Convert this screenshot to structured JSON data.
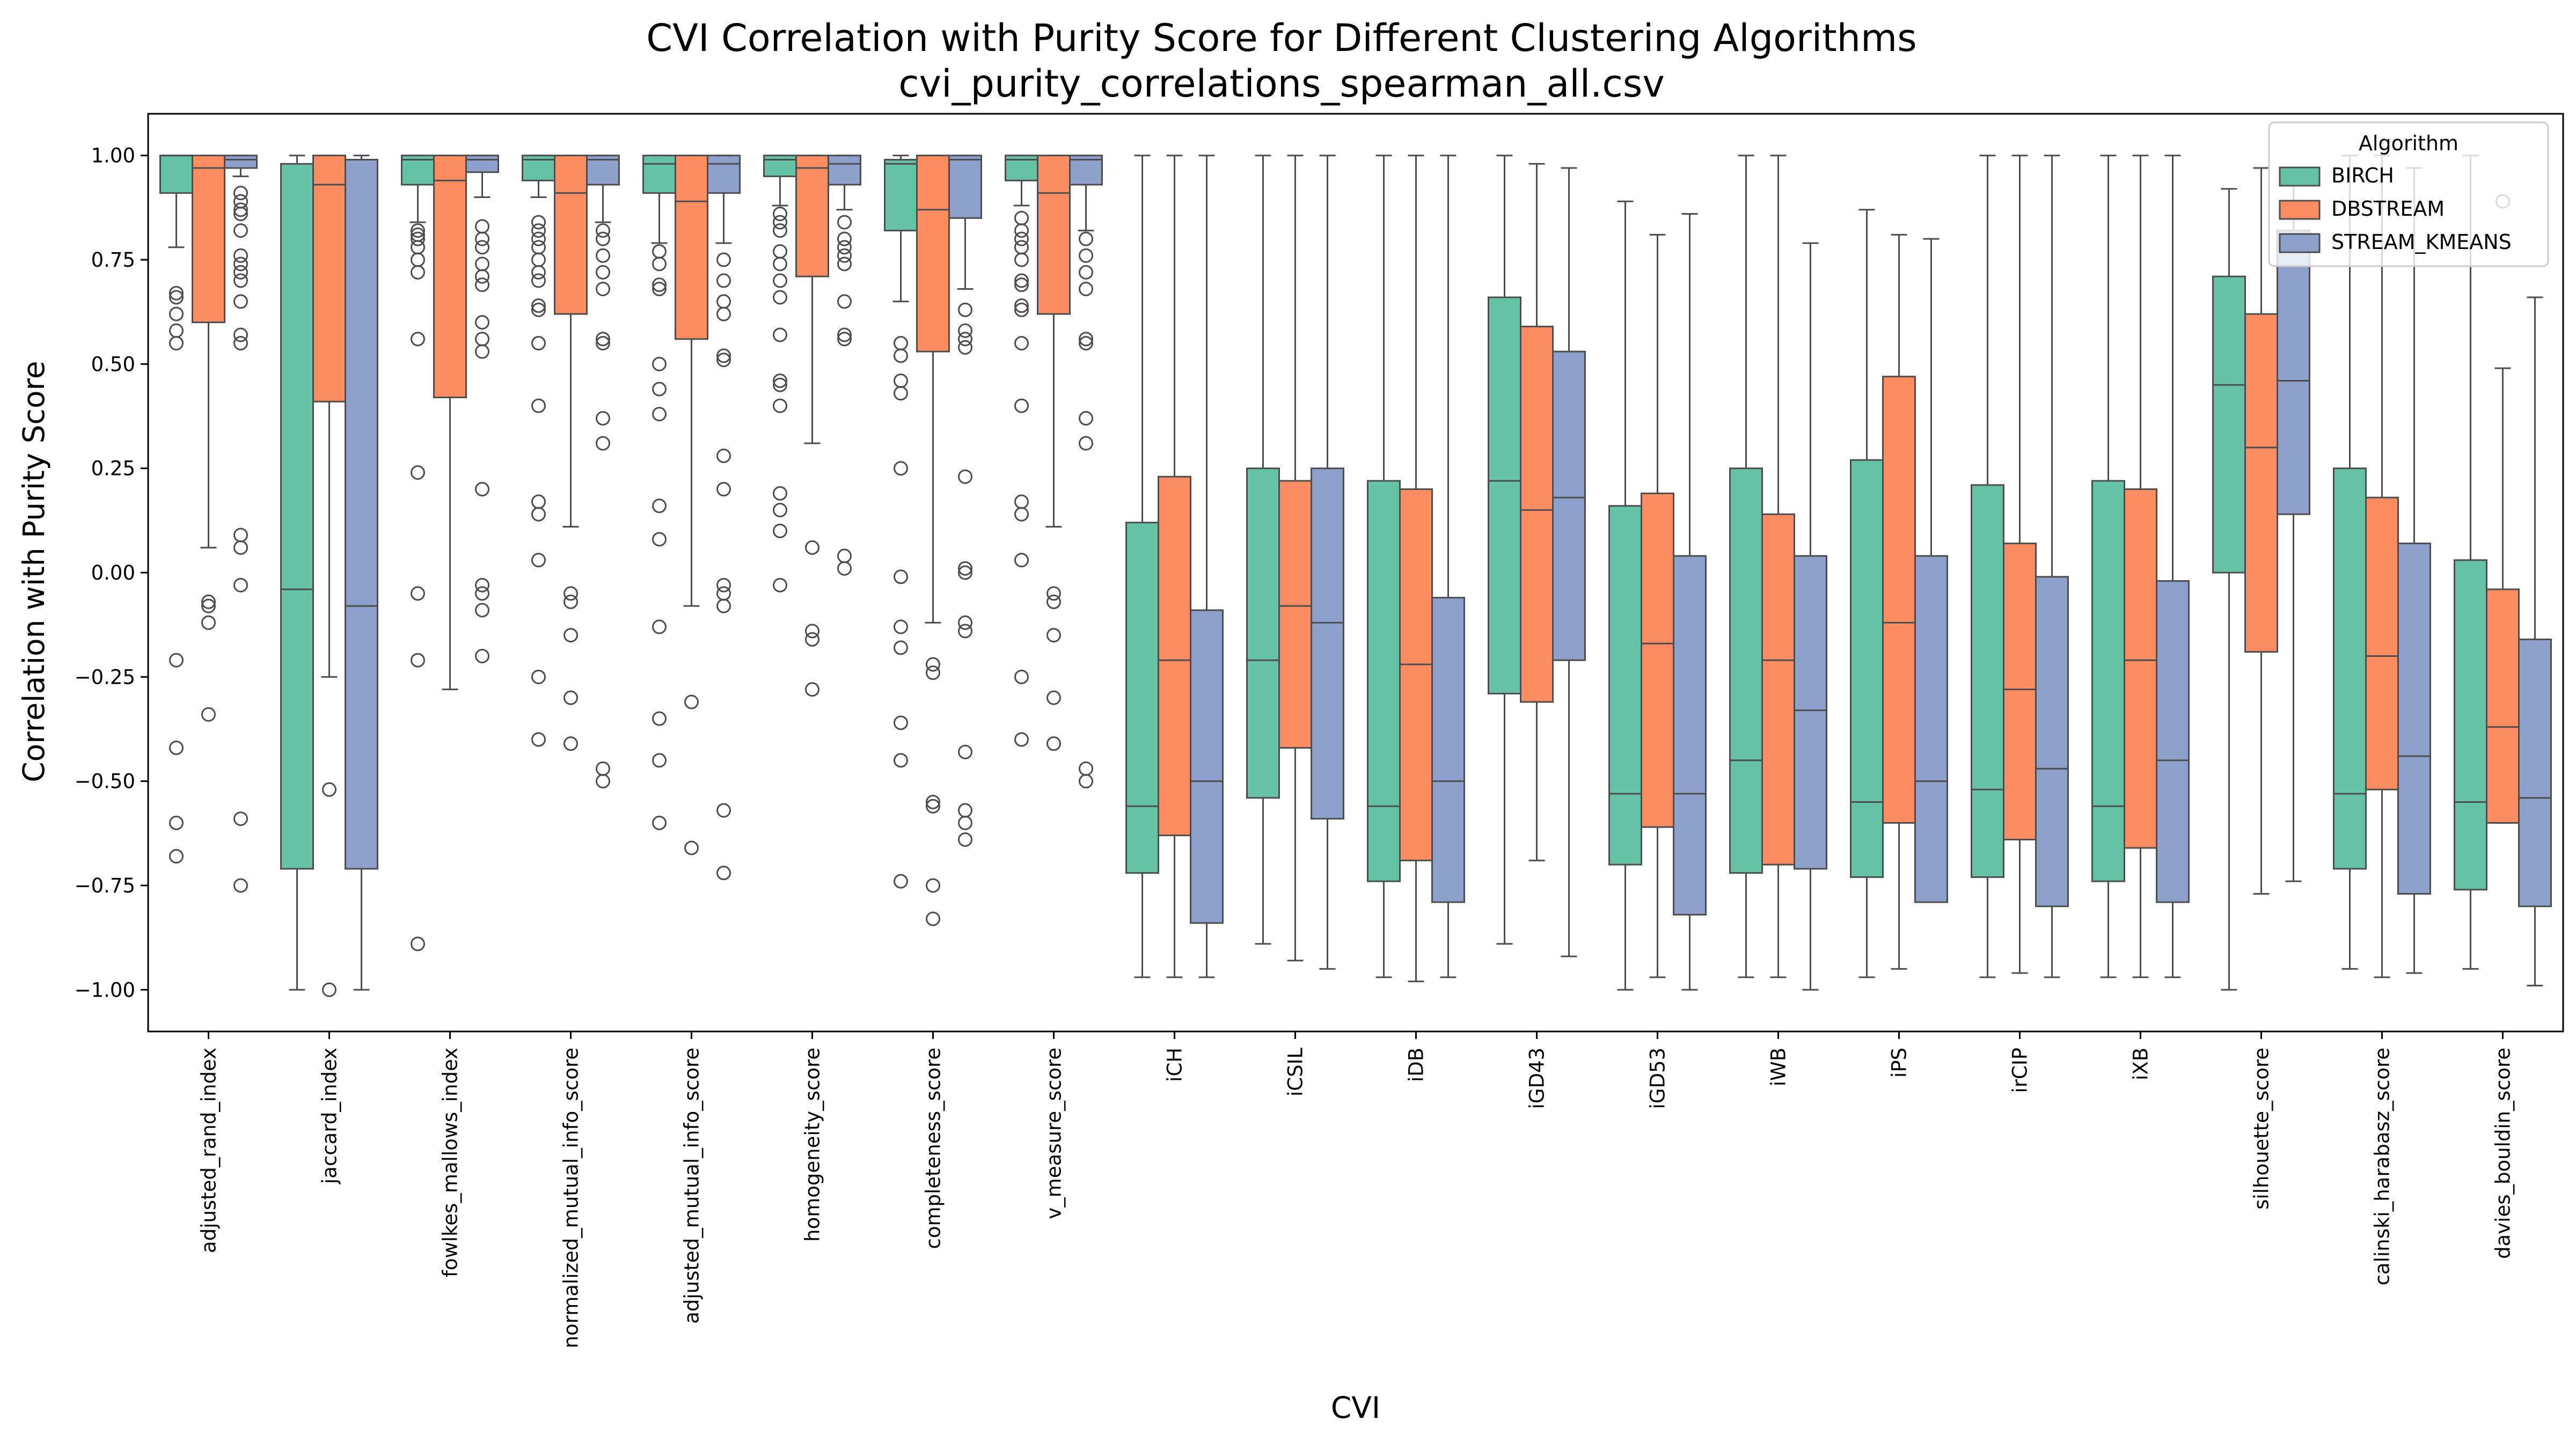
{
  "chart_data": {
    "type": "box",
    "title": "CVI Correlation with Purity Score for Different Clustering Algorithms",
    "subtitle": "cvi_purity_correlations_spearman_all.csv",
    "xlabel": "CVI",
    "ylabel": "Correlation with Purity Score",
    "ylim": [
      -1.1,
      1.1
    ],
    "yticks": [
      -1.0,
      -0.75,
      -0.5,
      -0.25,
      0.0,
      0.25,
      0.5,
      0.75,
      1.0
    ],
    "ytick_labels": [
      "−1.00",
      "−0.75",
      "−0.50",
      "−0.25",
      "0.00",
      "0.25",
      "0.50",
      "0.75",
      "1.00"
    ],
    "grid": false,
    "legend": {
      "title": "Algorithm",
      "placement": "top-right"
    },
    "categories": [
      "adjusted_rand_index",
      "jaccard_index",
      "fowlkes_mallows_index",
      "normalized_mutual_info_score",
      "adjusted_mutual_info_score",
      "homogeneity_score",
      "completeness_score",
      "v_measure_score",
      "iCH",
      "iCSIL",
      "iDB",
      "iGD43",
      "iGD53",
      "iWB",
      "iPS",
      "irCIP",
      "iXB",
      "silhouette_score",
      "calinski_harabasz_score",
      "davies_bouldin_score"
    ],
    "series": [
      {
        "name": "BIRCH",
        "color": "#66c2a5",
        "boxes": [
          {
            "whislo": 0.78,
            "q1": 0.91,
            "med": 1.0,
            "q3": 1.0,
            "whishi": 1.0,
            "fliers": [
              0.67,
              0.66,
              0.62,
              0.58,
              0.55,
              -0.21,
              -0.42,
              -0.6,
              -0.68
            ]
          },
          {
            "whislo": -1.0,
            "q1": -0.71,
            "med": -0.04,
            "q3": 0.98,
            "whishi": 1.0,
            "fliers": []
          },
          {
            "whislo": 0.84,
            "q1": 0.93,
            "med": 0.99,
            "q3": 1.0,
            "whishi": 1.0,
            "fliers": [
              0.82,
              0.81,
              0.8,
              0.78,
              0.75,
              0.72,
              0.56,
              0.24,
              -0.05,
              -0.21,
              -0.89
            ]
          },
          {
            "whislo": 0.9,
            "q1": 0.94,
            "med": 0.99,
            "q3": 1.0,
            "whishi": 1.0,
            "fliers": [
              0.84,
              0.82,
              0.8,
              0.78,
              0.75,
              0.72,
              0.7,
              0.64,
              0.63,
              0.55,
              0.4,
              0.17,
              0.14,
              0.03,
              -0.25,
              -0.4
            ]
          },
          {
            "whislo": 0.79,
            "q1": 0.91,
            "med": 0.98,
            "q3": 1.0,
            "whishi": 1.0,
            "fliers": [
              0.77,
              0.74,
              0.69,
              0.68,
              0.5,
              0.44,
              0.38,
              0.16,
              0.08,
              -0.13,
              -0.35,
              -0.45,
              -0.6
            ]
          },
          {
            "whislo": 0.88,
            "q1": 0.95,
            "med": 0.99,
            "q3": 1.0,
            "whishi": 1.0,
            "fliers": [
              0.86,
              0.84,
              0.82,
              0.77,
              0.74,
              0.7,
              0.66,
              0.57,
              0.46,
              0.45,
              0.4,
              0.19,
              0.15,
              0.1,
              -0.03
            ]
          },
          {
            "whislo": 0.65,
            "q1": 0.82,
            "med": 0.98,
            "q3": 0.99,
            "whishi": 1.0,
            "fliers": [
              0.55,
              0.52,
              0.46,
              0.43,
              0.25,
              -0.01,
              -0.13,
              -0.18,
              -0.36,
              -0.45,
              -0.74
            ]
          },
          {
            "whislo": 0.88,
            "q1": 0.94,
            "med": 0.99,
            "q3": 1.0,
            "whishi": 1.0,
            "fliers": [
              0.85,
              0.82,
              0.8,
              0.78,
              0.75,
              0.7,
              0.69,
              0.64,
              0.63,
              0.55,
              0.4,
              0.17,
              0.14,
              0.03,
              -0.25,
              -0.4
            ]
          },
          {
            "whislo": -0.97,
            "q1": -0.72,
            "med": -0.56,
            "q3": 0.12,
            "whishi": 1.0,
            "fliers": []
          },
          {
            "whislo": -0.89,
            "q1": -0.54,
            "med": -0.21,
            "q3": 0.25,
            "whishi": 1.0,
            "fliers": []
          },
          {
            "whislo": -0.97,
            "q1": -0.74,
            "med": -0.56,
            "q3": 0.22,
            "whishi": 1.0,
            "fliers": []
          },
          {
            "whislo": -0.89,
            "q1": -0.29,
            "med": 0.22,
            "q3": 0.66,
            "whishi": 1.0,
            "fliers": []
          },
          {
            "whislo": -1.0,
            "q1": -0.7,
            "med": -0.53,
            "q3": 0.16,
            "whishi": 0.89,
            "fliers": []
          },
          {
            "whislo": -0.97,
            "q1": -0.72,
            "med": -0.45,
            "q3": 0.25,
            "whishi": 1.0,
            "fliers": []
          },
          {
            "whislo": -0.97,
            "q1": -0.73,
            "med": -0.55,
            "q3": 0.27,
            "whishi": 0.87,
            "fliers": []
          },
          {
            "whislo": -0.97,
            "q1": -0.73,
            "med": -0.52,
            "q3": 0.21,
            "whishi": 1.0,
            "fliers": []
          },
          {
            "whislo": -0.97,
            "q1": -0.74,
            "med": -0.56,
            "q3": 0.22,
            "whishi": 1.0,
            "fliers": []
          },
          {
            "whislo": -1.0,
            "q1": 0.0,
            "med": 0.45,
            "q3": 0.71,
            "whishi": 0.92,
            "fliers": []
          },
          {
            "whislo": -0.95,
            "q1": -0.71,
            "med": -0.53,
            "q3": 0.25,
            "whishi": 1.0,
            "fliers": []
          },
          {
            "whislo": -0.95,
            "q1": -0.76,
            "med": -0.55,
            "q3": 0.03,
            "whishi": 1.0,
            "fliers": []
          }
        ]
      },
      {
        "name": "DBSTREAM",
        "color": "#fc8d62",
        "boxes": [
          {
            "whislo": 0.06,
            "q1": 0.6,
            "med": 0.97,
            "q3": 1.0,
            "whishi": 1.0,
            "fliers": [
              -0.07,
              -0.08,
              -0.12,
              -0.34
            ]
          },
          {
            "whislo": -0.25,
            "q1": 0.41,
            "med": 0.93,
            "q3": 1.0,
            "whishi": 1.0,
            "fliers": [
              -0.52,
              -1.0
            ]
          },
          {
            "whislo": -0.28,
            "q1": 0.42,
            "med": 0.94,
            "q3": 1.0,
            "whishi": 1.0,
            "fliers": []
          },
          {
            "whislo": 0.11,
            "q1": 0.62,
            "med": 0.91,
            "q3": 1.0,
            "whishi": 1.0,
            "fliers": [
              -0.05,
              -0.07,
              -0.15,
              -0.3,
              -0.41
            ]
          },
          {
            "whislo": -0.08,
            "q1": 0.56,
            "med": 0.89,
            "q3": 1.0,
            "whishi": 1.0,
            "fliers": [
              -0.31,
              -0.66
            ]
          },
          {
            "whislo": 0.31,
            "q1": 0.71,
            "med": 0.97,
            "q3": 1.0,
            "whishi": 1.0,
            "fliers": [
              0.06,
              -0.14,
              -0.16,
              -0.28
            ]
          },
          {
            "whislo": -0.12,
            "q1": 0.53,
            "med": 0.87,
            "q3": 1.0,
            "whishi": 1.0,
            "fliers": [
              -0.22,
              -0.24,
              -0.55,
              -0.56,
              -0.75,
              -0.83
            ]
          },
          {
            "whislo": 0.11,
            "q1": 0.62,
            "med": 0.91,
            "q3": 1.0,
            "whishi": 1.0,
            "fliers": [
              -0.05,
              -0.07,
              -0.15,
              -0.3,
              -0.41
            ]
          },
          {
            "whislo": -0.97,
            "q1": -0.63,
            "med": -0.21,
            "q3": 0.23,
            "whishi": 1.0,
            "fliers": []
          },
          {
            "whislo": -0.93,
            "q1": -0.42,
            "med": -0.08,
            "q3": 0.22,
            "whishi": 1.0,
            "fliers": []
          },
          {
            "whislo": -0.98,
            "q1": -0.69,
            "med": -0.22,
            "q3": 0.2,
            "whishi": 1.0,
            "fliers": []
          },
          {
            "whislo": -0.69,
            "q1": -0.31,
            "med": 0.15,
            "q3": 0.59,
            "whishi": 0.98,
            "fliers": []
          },
          {
            "whislo": -0.97,
            "q1": -0.61,
            "med": -0.17,
            "q3": 0.19,
            "whishi": 0.81,
            "fliers": []
          },
          {
            "whislo": -0.97,
            "q1": -0.7,
            "med": -0.21,
            "q3": 0.14,
            "whishi": 1.0,
            "fliers": []
          },
          {
            "whislo": -0.95,
            "q1": -0.6,
            "med": -0.12,
            "q3": 0.47,
            "whishi": 0.81,
            "fliers": []
          },
          {
            "whislo": -0.96,
            "q1": -0.64,
            "med": -0.28,
            "q3": 0.07,
            "whishi": 1.0,
            "fliers": []
          },
          {
            "whislo": -0.97,
            "q1": -0.66,
            "med": -0.21,
            "q3": 0.2,
            "whishi": 1.0,
            "fliers": []
          },
          {
            "whislo": -0.77,
            "q1": -0.19,
            "med": 0.3,
            "q3": 0.62,
            "whishi": 0.97,
            "fliers": []
          },
          {
            "whislo": -0.97,
            "q1": -0.52,
            "med": -0.2,
            "q3": 0.18,
            "whishi": 1.0,
            "fliers": []
          },
          {
            "whislo": -0.6,
            "q1": -0.6,
            "med": -0.37,
            "q3": -0.04,
            "whishi": 0.49,
            "fliers": [
              0.89
            ]
          }
        ]
      },
      {
        "name": "STREAM_KMEANS",
        "color": "#8da0cb",
        "boxes": [
          {
            "whislo": 0.95,
            "q1": 0.97,
            "med": 0.99,
            "q3": 1.0,
            "whishi": 1.0,
            "fliers": [
              0.91,
              0.89,
              0.87,
              0.86,
              0.82,
              0.76,
              0.74,
              0.72,
              0.7,
              0.65,
              0.57,
              0.55,
              0.09,
              0.06,
              -0.03,
              -0.59,
              -0.75
            ]
          },
          {
            "whislo": -1.0,
            "q1": -0.71,
            "med": -0.08,
            "q3": 0.99,
            "whishi": 1.0,
            "fliers": []
          },
          {
            "whislo": 0.9,
            "q1": 0.96,
            "med": 0.99,
            "q3": 1.0,
            "whishi": 1.0,
            "fliers": [
              0.83,
              0.8,
              0.78,
              0.74,
              0.71,
              0.69,
              0.6,
              0.56,
              0.53,
              0.2,
              -0.03,
              -0.05,
              -0.09,
              -0.2
            ]
          },
          {
            "whislo": 0.84,
            "q1": 0.93,
            "med": 0.99,
            "q3": 1.0,
            "whishi": 1.0,
            "fliers": [
              0.82,
              0.8,
              0.76,
              0.72,
              0.68,
              0.56,
              0.55,
              0.37,
              0.31,
              -0.47,
              -0.5
            ]
          },
          {
            "whislo": 0.79,
            "q1": 0.91,
            "med": 0.98,
            "q3": 1.0,
            "whishi": 1.0,
            "fliers": [
              0.75,
              0.7,
              0.65,
              0.62,
              0.52,
              0.51,
              0.28,
              0.2,
              -0.03,
              -0.05,
              -0.08,
              -0.57,
              -0.72
            ]
          },
          {
            "whislo": 0.87,
            "q1": 0.93,
            "med": 0.98,
            "q3": 1.0,
            "whishi": 1.0,
            "fliers": [
              0.84,
              0.8,
              0.78,
              0.76,
              0.74,
              0.65,
              0.57,
              0.56,
              0.04,
              0.01
            ]
          },
          {
            "whislo": 0.68,
            "q1": 0.85,
            "med": 0.99,
            "q3": 1.0,
            "whishi": 1.0,
            "fliers": [
              0.63,
              0.58,
              0.56,
              0.54,
              0.23,
              0.01,
              0.0,
              -0.12,
              -0.14,
              -0.43,
              -0.57,
              -0.6,
              -0.64
            ]
          },
          {
            "whislo": 0.82,
            "q1": 0.93,
            "med": 0.99,
            "q3": 1.0,
            "whishi": 1.0,
            "fliers": [
              0.8,
              0.76,
              0.72,
              0.68,
              0.56,
              0.55,
              0.37,
              0.31,
              -0.47,
              -0.5
            ]
          },
          {
            "whislo": -0.97,
            "q1": -0.84,
            "med": -0.5,
            "q3": -0.09,
            "whishi": 1.0,
            "fliers": []
          },
          {
            "whislo": -0.95,
            "q1": -0.59,
            "med": -0.12,
            "q3": 0.25,
            "whishi": 1.0,
            "fliers": []
          },
          {
            "whislo": -0.97,
            "q1": -0.79,
            "med": -0.5,
            "q3": -0.06,
            "whishi": 1.0,
            "fliers": []
          },
          {
            "whislo": -0.92,
            "q1": -0.21,
            "med": 0.18,
            "q3": 0.53,
            "whishi": 0.97,
            "fliers": []
          },
          {
            "whislo": -1.0,
            "q1": -0.82,
            "med": -0.53,
            "q3": 0.04,
            "whishi": 0.86,
            "fliers": []
          },
          {
            "whislo": -1.0,
            "q1": -0.71,
            "med": -0.33,
            "q3": 0.04,
            "whishi": 0.79,
            "fliers": []
          },
          {
            "whislo": -0.79,
            "q1": -0.79,
            "med": -0.5,
            "q3": 0.04,
            "whishi": 0.8,
            "fliers": []
          },
          {
            "whislo": -0.97,
            "q1": -0.8,
            "med": -0.47,
            "q3": -0.01,
            "whishi": 1.0,
            "fliers": []
          },
          {
            "whislo": -0.97,
            "q1": -0.79,
            "med": -0.45,
            "q3": -0.02,
            "whishi": 1.0,
            "fliers": []
          },
          {
            "whislo": -0.74,
            "q1": 0.14,
            "med": 0.46,
            "q3": 0.82,
            "whishi": 0.97,
            "fliers": []
          },
          {
            "whislo": -0.96,
            "q1": -0.77,
            "med": -0.44,
            "q3": 0.07,
            "whishi": 0.97,
            "fliers": []
          },
          {
            "whislo": -0.99,
            "q1": -0.8,
            "med": -0.54,
            "q3": -0.16,
            "whishi": 0.66,
            "fliers": []
          }
        ]
      }
    ]
  }
}
